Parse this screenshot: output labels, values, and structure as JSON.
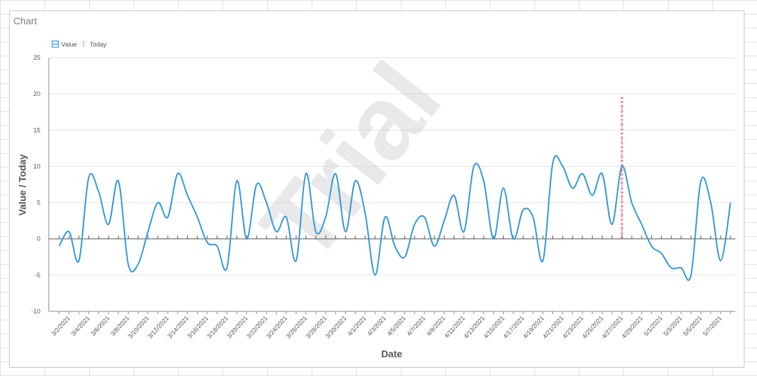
{
  "panel": {
    "title": "Chart"
  },
  "watermark": "Trial",
  "chart_data": {
    "type": "line",
    "xlabel": "Date",
    "ylabel": "Value / Today",
    "ylim": [
      -10,
      25
    ],
    "yticks": [
      25,
      20,
      15,
      10,
      5,
      0,
      -5,
      -10
    ],
    "start_date": "2021-03-01",
    "x_labels": [
      "3/2/2021",
      "3/4/2021",
      "3/6/2021",
      "3/8/2021",
      "3/10/2021",
      "3/12/2021",
      "3/14/2021",
      "3/16/2021",
      "3/18/2021",
      "3/20/2021",
      "3/22/2021",
      "3/24/2021",
      "3/26/2021",
      "3/28/2021",
      "3/30/2021",
      "4/1/2021",
      "4/3/2021",
      "4/5/2021",
      "4/7/2021",
      "4/9/2021",
      "4/11/2021",
      "4/13/2021",
      "4/15/2021",
      "4/17/2021",
      "4/19/2021",
      "4/21/2021",
      "4/23/2021",
      "4/25/2021",
      "4/27/2021",
      "4/29/2021",
      "5/1/2021",
      "5/3/2021",
      "5/5/2021",
      "5/7/2021"
    ],
    "legend": [
      {
        "name": "Value",
        "color": "#3498db"
      },
      {
        "name": "Today",
        "color": "#e8546b"
      }
    ],
    "series": [
      {
        "name": "Value",
        "color": "#3498db",
        "points": [
          [
            "3/1/2021",
            -1
          ],
          [
            "3/2/2021",
            1
          ],
          [
            "3/3/2021",
            -3
          ],
          [
            "3/4/2021",
            8.5
          ],
          [
            "3/5/2021",
            6.5
          ],
          [
            "3/6/2021",
            2
          ],
          [
            "3/7/2021",
            8
          ],
          [
            "3/8/2021",
            -3.5
          ],
          [
            "3/9/2021",
            -3.5
          ],
          [
            "3/10/2021",
            1
          ],
          [
            "3/11/2021",
            5
          ],
          [
            "3/12/2021",
            3
          ],
          [
            "3/13/2021",
            9
          ],
          [
            "3/14/2021",
            6
          ],
          [
            "3/15/2021",
            3
          ],
          [
            "3/16/2021",
            -0.5
          ],
          [
            "3/17/2021",
            -1
          ],
          [
            "3/18/2021",
            -4
          ],
          [
            "3/19/2021",
            8
          ],
          [
            "3/20/2021",
            0
          ],
          [
            "3/21/2021",
            7.5
          ],
          [
            "3/22/2021",
            5
          ],
          [
            "3/23/2021",
            1
          ],
          [
            "3/24/2021",
            3
          ],
          [
            "3/25/2021",
            -3
          ],
          [
            "3/26/2021",
            9
          ],
          [
            "3/27/2021",
            1
          ],
          [
            "3/28/2021",
            3
          ],
          [
            "3/29/2021",
            9
          ],
          [
            "3/30/2021",
            1
          ],
          [
            "3/31/2021",
            8
          ],
          [
            "4/1/2021",
            3.5
          ],
          [
            "4/2/2021",
            -5
          ],
          [
            "4/3/2021",
            3
          ],
          [
            "4/4/2021",
            -1
          ],
          [
            "4/5/2021",
            -2.5
          ],
          [
            "4/6/2021",
            2
          ],
          [
            "4/7/2021",
            3
          ],
          [
            "4/8/2021",
            -1
          ],
          [
            "4/9/2021",
            2.5
          ],
          [
            "4/10/2021",
            6
          ],
          [
            "4/11/2021",
            1
          ],
          [
            "4/12/2021",
            10
          ],
          [
            "4/13/2021",
            8
          ],
          [
            "4/14/2021",
            0
          ],
          [
            "4/15/2021",
            7
          ],
          [
            "4/16/2021",
            0
          ],
          [
            "4/17/2021",
            4
          ],
          [
            "4/18/2021",
            3
          ],
          [
            "4/19/2021",
            -3
          ],
          [
            "4/20/2021",
            10.5
          ],
          [
            "4/21/2021",
            10
          ],
          [
            "4/22/2021",
            7
          ],
          [
            "4/23/2021",
            9
          ],
          [
            "4/24/2021",
            6
          ],
          [
            "4/25/2021",
            9
          ],
          [
            "4/26/2021",
            2
          ],
          [
            "4/27/2021",
            10
          ],
          [
            "4/28/2021",
            5
          ],
          [
            "4/29/2021",
            2
          ],
          [
            "4/30/2021",
            -1
          ],
          [
            "5/1/2021",
            -2
          ],
          [
            "5/2/2021",
            -4
          ],
          [
            "5/3/2021",
            -4
          ],
          [
            "5/4/2021",
            -5
          ],
          [
            "5/5/2021",
            8
          ],
          [
            "5/6/2021",
            5
          ],
          [
            "5/7/2021",
            -3
          ],
          [
            "5/8/2021",
            5
          ]
        ]
      },
      {
        "name": "Today",
        "color": "#e8546b",
        "type": "vertical-marker",
        "date": "4/27/2021",
        "y_range": [
          0,
          19.5
        ]
      }
    ],
    "grid": true,
    "legend_position": "top-left"
  }
}
